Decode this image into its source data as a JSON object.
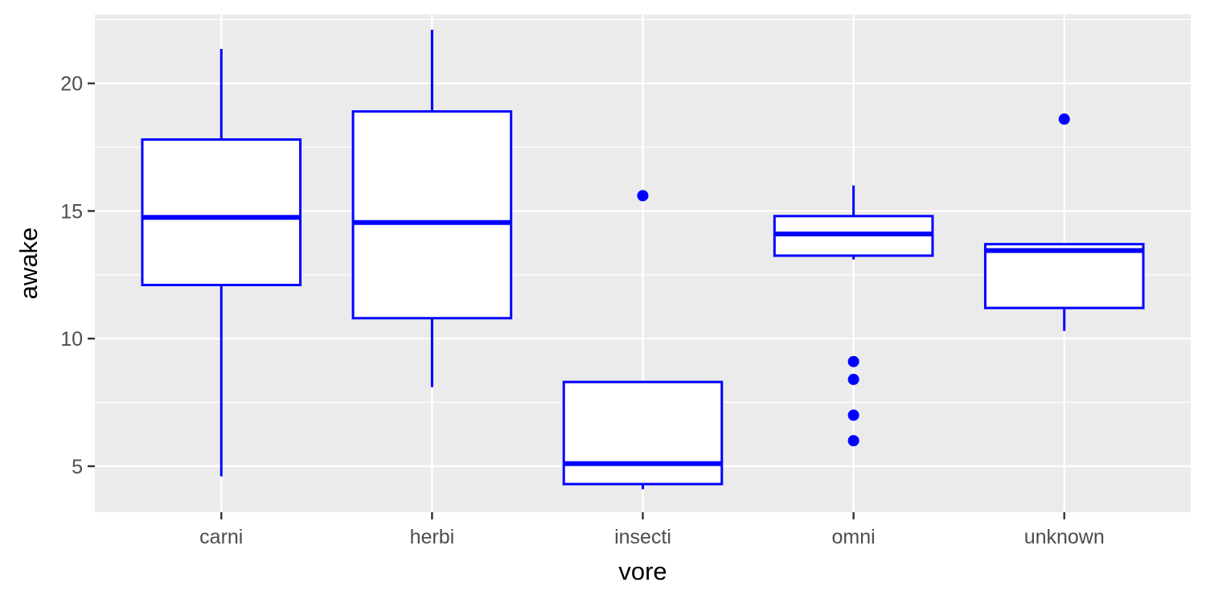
{
  "chart_data": {
    "type": "boxplot",
    "xlabel": "vore",
    "ylabel": "awake",
    "ylim": [
      3.2,
      22.7
    ],
    "yticks": [
      5,
      10,
      15,
      20
    ],
    "ytick_labels": [
      "5",
      "10",
      "15",
      "20"
    ],
    "grid": true,
    "colors": {
      "panel": "#ebebeb",
      "grid": "#ffffff",
      "box_stroke": "#0000ff",
      "box_fill": "#ffffff"
    },
    "categories": [
      "carni",
      "herbi",
      "insecti",
      "omni",
      "unknown"
    ],
    "boxes": [
      {
        "category": "carni",
        "lower_whisker": 4.6,
        "q1": 12.1,
        "median": 14.75,
        "q3": 17.8,
        "upper_whisker": 21.35,
        "outliers": []
      },
      {
        "category": "herbi",
        "lower_whisker": 8.1,
        "q1": 10.8,
        "median": 14.55,
        "q3": 18.9,
        "upper_whisker": 22.1,
        "outliers": []
      },
      {
        "category": "insecti",
        "lower_whisker": 4.1,
        "q1": 4.3,
        "median": 5.1,
        "q3": 8.3,
        "upper_whisker": 8.3,
        "outliers": [
          15.6
        ]
      },
      {
        "category": "omni",
        "lower_whisker": 13.1,
        "q1": 13.25,
        "median": 14.1,
        "q3": 14.8,
        "upper_whisker": 16.0,
        "outliers": [
          9.1,
          8.4,
          7.0,
          6.0
        ]
      },
      {
        "category": "unknown",
        "lower_whisker": 10.3,
        "q1": 11.2,
        "median": 13.45,
        "q3": 13.7,
        "upper_whisker": 13.7,
        "outliers": [
          18.6
        ]
      }
    ]
  }
}
